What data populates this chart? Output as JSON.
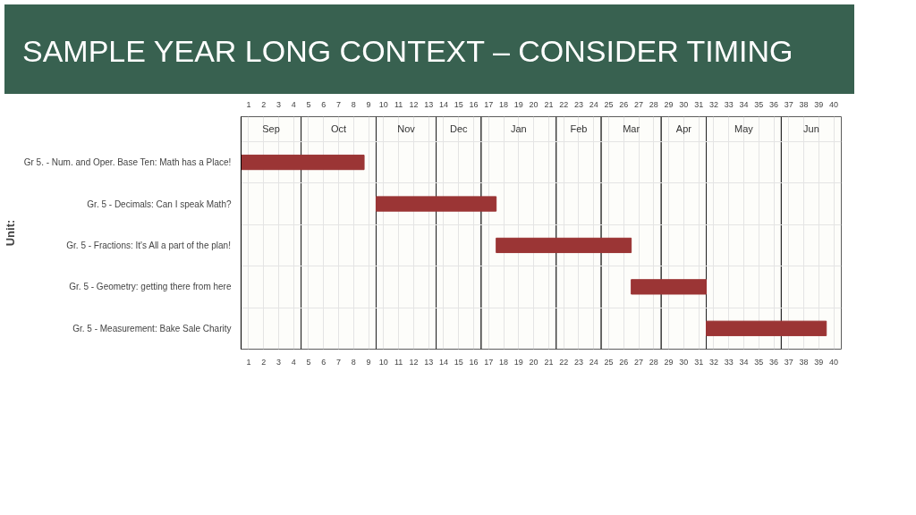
{
  "chart_data": {
    "type": "bar",
    "orientation": "horizontal",
    "title": "SAMPLE YEAR LONG CONTEXT – CONSIDER TIMING",
    "ylabel": "Unit:",
    "categories": [
      "Gr 5. - Num. and Oper. Base Ten: Math has a Place!",
      "Gr. 5 - Decimals: Can I speak Math?",
      "Gr. 5 - Fractions: It's All a part of the plan!",
      "Gr. 5 - Geometry: getting there from here",
      "Gr. 5 - Measurement: Bake Sale Charity"
    ],
    "base": [
      0.5,
      9.5,
      17.5,
      26.5,
      31.5
    ],
    "values": [
      8.2,
      8,
      9,
      5,
      8
    ],
    "color": "#9b3535",
    "xlim": [
      0.5,
      40.5
    ],
    "xticks": [
      1,
      2,
      3,
      4,
      5,
      6,
      7,
      8,
      9,
      10,
      11,
      12,
      13,
      14,
      15,
      16,
      17,
      18,
      19,
      20,
      21,
      22,
      23,
      24,
      25,
      26,
      27,
      28,
      29,
      30,
      31,
      32,
      33,
      34,
      35,
      36,
      37,
      38,
      39,
      40
    ],
    "x2lim": [
      0.5,
      40.5
    ],
    "x2ticks": [
      1,
      2,
      3,
      4,
      5,
      6,
      7,
      8,
      9,
      10,
      11,
      12,
      13,
      14,
      15,
      16,
      17,
      18,
      19,
      20,
      21,
      22,
      23,
      24,
      25,
      26,
      27,
      28,
      29,
      30,
      31,
      32,
      33,
      34,
      35,
      36,
      37,
      38,
      39,
      40
    ],
    "bands": [
      {
        "axis": "x",
        "from": 0.5,
        "to": 4.5,
        "label": "Sep"
      },
      {
        "axis": "x",
        "from": 4.5,
        "to": 9.5,
        "label": "Oct"
      },
      {
        "axis": "x",
        "from": 9.5,
        "to": 13.5,
        "label": "Nov"
      },
      {
        "axis": "x",
        "from": 13.5,
        "to": 16.5,
        "label": "Dec"
      },
      {
        "axis": "x",
        "from": 16.5,
        "to": 21.5,
        "label": "Jan"
      },
      {
        "axis": "x",
        "from": 21.5,
        "to": 24.5,
        "label": "Feb"
      },
      {
        "axis": "x",
        "from": 24.5,
        "to": 28.5,
        "label": "Mar"
      },
      {
        "axis": "x",
        "from": 28.5,
        "to": 31.5,
        "label": "Apr"
      },
      {
        "axis": "x",
        "from": 31.5,
        "to": 36.5,
        "label": "May"
      },
      {
        "axis": "x",
        "from": 36.5,
        "to": 40.5,
        "label": "Jun"
      }
    ],
    "grid": true
  }
}
